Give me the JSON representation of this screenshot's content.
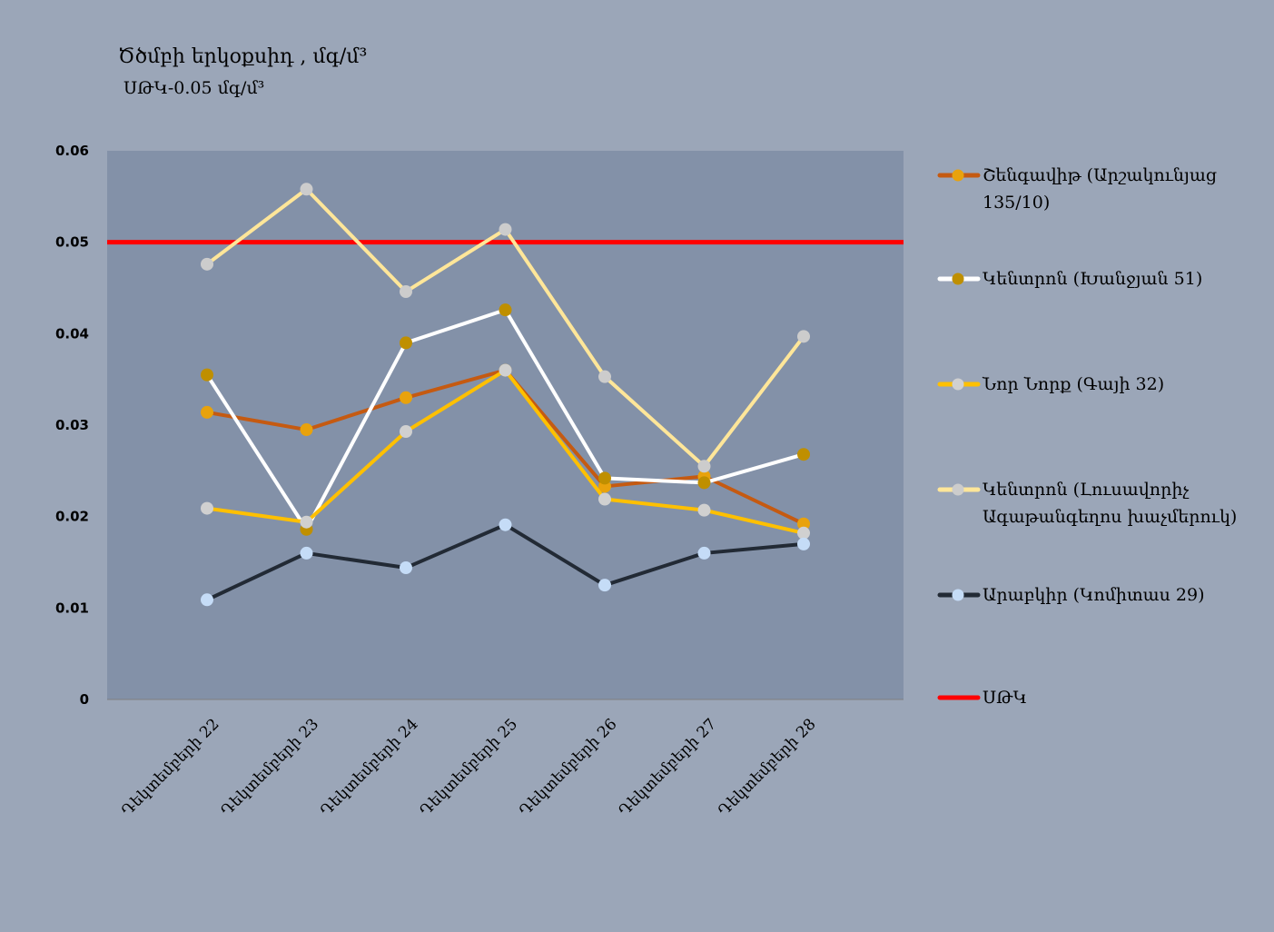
{
  "chart_data": {
    "type": "line",
    "title": "Ծծմբի երկօքսիդ , մգ/մ³",
    "subtitle": "ՍԹԿ-0.05 մգ/մ³",
    "xlabel": "",
    "ylabel": "",
    "ylim": [
      0,
      0.06
    ],
    "yticks": [
      "0",
      "0.01",
      "0.02",
      "0.03",
      "0.04",
      "0.05",
      "0.06"
    ],
    "grid": false,
    "legend_position": "right",
    "categories": [
      "Դեկտեմբերի 22",
      "Դեկտեմբերի 23",
      "Դեկտեմբերի 24",
      "Դեկտեմբերի 25",
      "Դեկտեմբերի 26",
      "Դեկտեմբերի 27",
      "Դեկտեմբերի 28"
    ],
    "series": [
      {
        "name": "Շենգավիթ (Արշակունյաց 135/10)",
        "line_color": "#c55a11",
        "marker_color": "#e8a20c",
        "values": [
          0.0314,
          0.0295,
          0.033,
          0.036,
          0.0233,
          0.0244,
          0.0192
        ]
      },
      {
        "name": "Կենտրոն (Խանջյան 51)",
        "line_color": "#ffffff",
        "marker_color": "#bf8f00",
        "values": [
          0.0355,
          0.0186,
          0.039,
          0.0426,
          0.0242,
          0.0237,
          0.0268
        ]
      },
      {
        "name": "Նոր Նորք (Գայի 32)",
        "line_color": "#ffc000",
        "marker_color": "#d0d0d0",
        "values": [
          0.0209,
          0.0194,
          0.0293,
          0.036,
          0.0219,
          0.0207,
          0.0182
        ]
      },
      {
        "name": "Կենտրոն (Լուսավորիչ Ագաթանգեղոս խաչմերուկ)",
        "line_color": "#ffe699",
        "marker_color": "#cccccc",
        "values": [
          0.0476,
          0.0558,
          0.0446,
          0.0514,
          0.0353,
          0.0255,
          0.0397
        ]
      },
      {
        "name": "Արաբկիր (Կոմիտաս 29)",
        "line_color": "#222a35",
        "marker_color": "#c5dcf7",
        "values": [
          0.0109,
          0.016,
          0.0144,
          0.0191,
          0.0125,
          0.016,
          0.017
        ]
      }
    ],
    "reference_line": {
      "name": "ՍԹԿ",
      "value": 0.05,
      "color": "#ff0000"
    },
    "legend_lines": [
      [
        "Շենգավիթ (Արշակունյաց",
        "135/10)"
      ],
      [
        "Կենտրոն (Խանջյան 51)"
      ],
      [
        "Նոր Նորք (Գայի 32)"
      ],
      [
        "Կենտրոն (Լուսավորիչ",
        "Ագաթանգեղոս խաչմերուկ)"
      ],
      [
        "Արաբկիր (Կոմիտաս 29)"
      ]
    ]
  }
}
